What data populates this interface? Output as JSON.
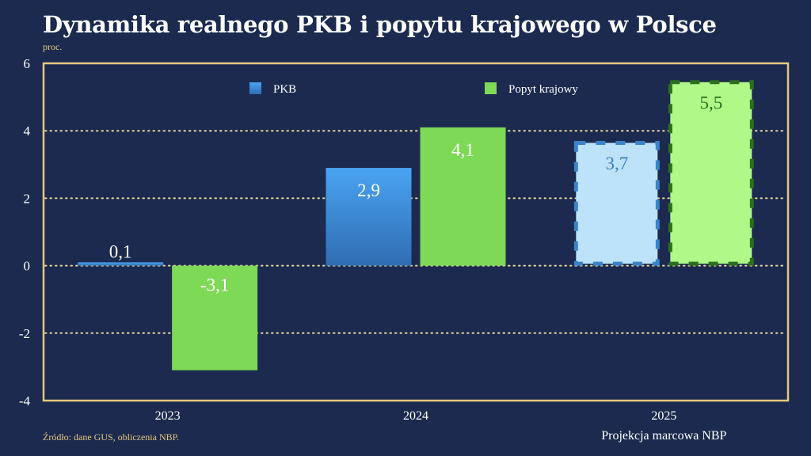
{
  "title": "Dynamika realnego PKB i popytu krajowego w Polsce",
  "unit": "proc.",
  "source": "Źródło: dane GUS, obliczenia NBP.",
  "colors": {
    "background": "#1b2a4e",
    "frame": "#e8c77f",
    "pkb": "#3f8ee0",
    "popyt": "#7ed957",
    "pkb_projection_fill": "#bde3fb",
    "pkb_projection_border": "#3c82c8",
    "popyt_projection_fill": "#b0f887",
    "popyt_projection_border": "#2c6e1e"
  },
  "chart_data": {
    "type": "bar",
    "title": "Dynamika realnego PKB i popytu krajowego w Polsce",
    "ylabel": "proc.",
    "xlabel": "",
    "ylim": [
      -4,
      6
    ],
    "yticks": [
      -4,
      -2,
      0,
      2,
      4,
      6
    ],
    "grid": true,
    "legend_placement": "top-center",
    "categories": [
      "2023",
      "2024",
      "2025"
    ],
    "category_sublabels": [
      "",
      "",
      "Projekcja marcowa NBP"
    ],
    "projection_categories": [
      "2025"
    ],
    "series": [
      {
        "name": "PKB",
        "values": [
          0.1,
          2.9,
          3.7
        ],
        "labels": [
          "0,1",
          "2,9",
          "3,7"
        ]
      },
      {
        "name": "Popyt krajowy",
        "values": [
          -3.1,
          4.1,
          5.5
        ],
        "labels": [
          "-3,1",
          "4,1",
          "5,5"
        ]
      }
    ]
  }
}
